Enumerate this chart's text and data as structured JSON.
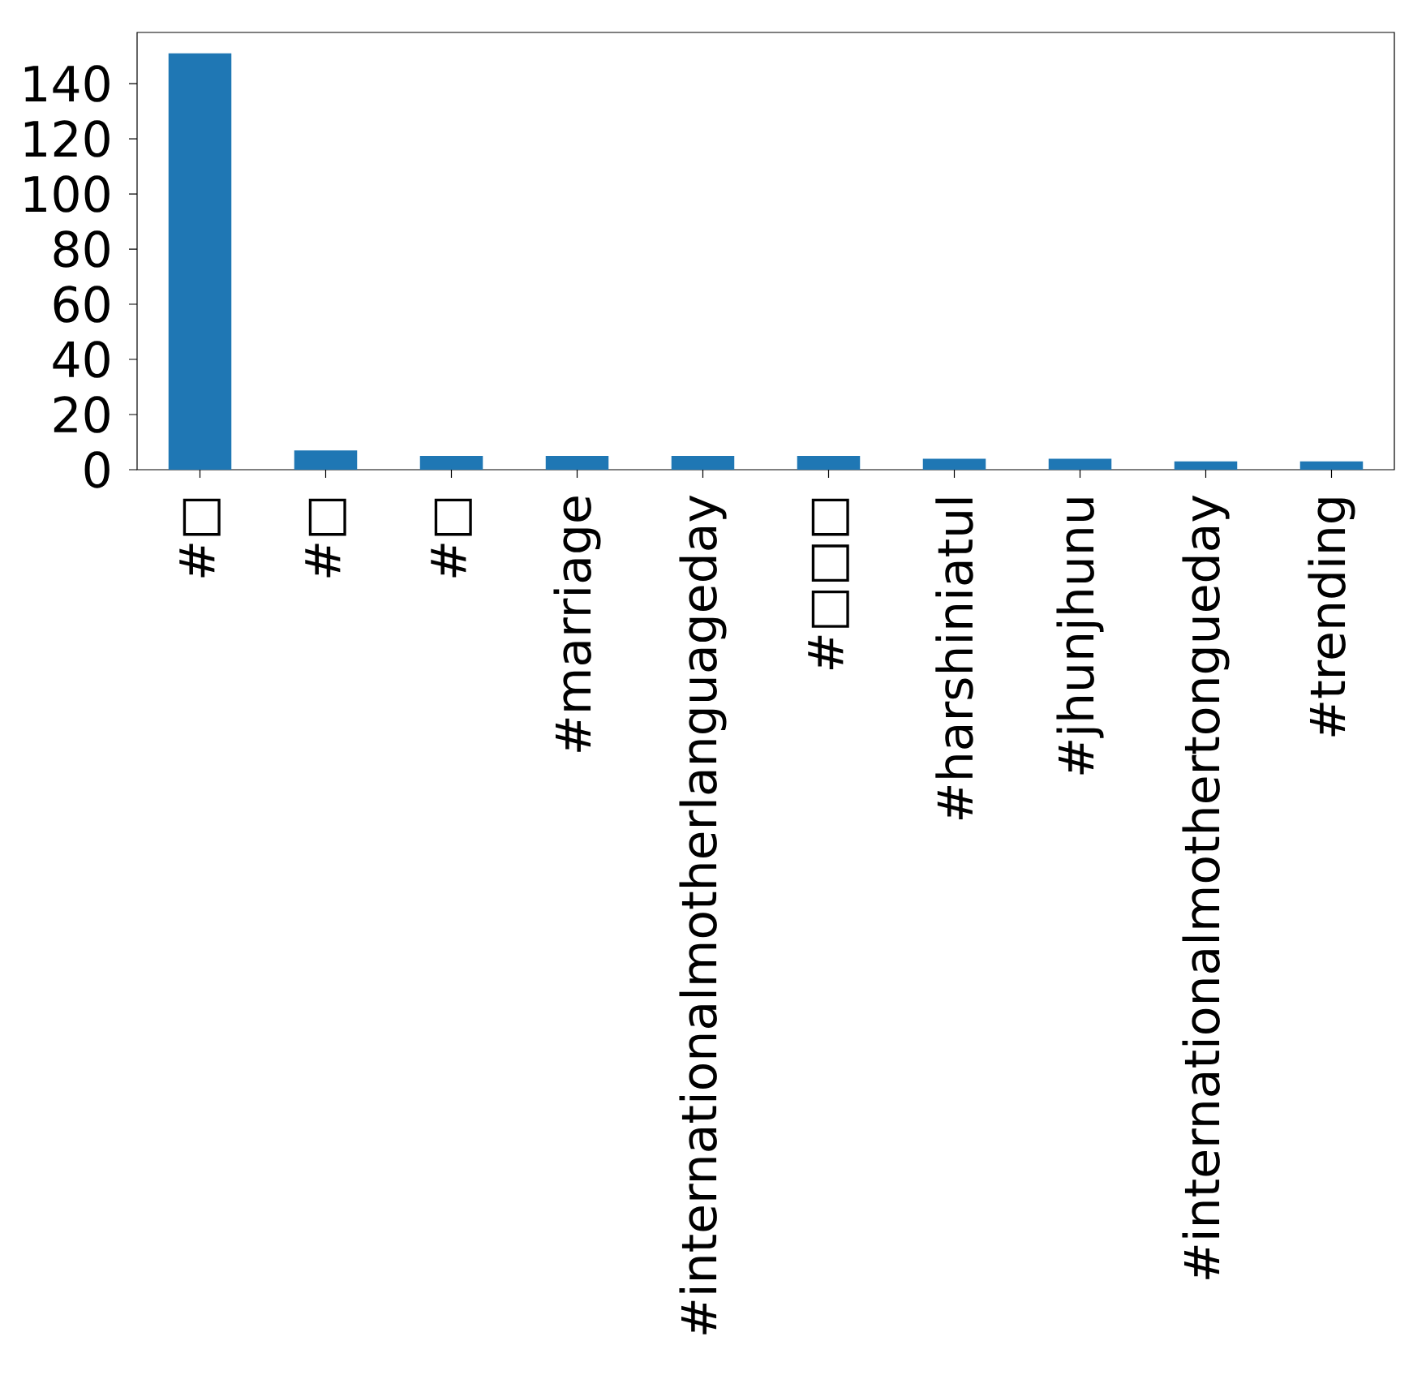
{
  "chart_data": {
    "type": "bar",
    "categories": [
      "#□",
      "#□",
      "#□",
      "#marriage",
      "#internationalmotherlanguageday",
      "#□□□",
      "#harshiniatul",
      "#jhunjhunu",
      "#internationalmothertongueday",
      "#trending"
    ],
    "values": [
      151,
      7,
      5,
      5,
      5,
      5,
      4,
      4,
      3,
      3
    ],
    "color": "#1f77b4",
    "ylim": [
      0,
      158.55
    ],
    "yticks": [
      0,
      20,
      40,
      60,
      80,
      100,
      120,
      140
    ]
  }
}
